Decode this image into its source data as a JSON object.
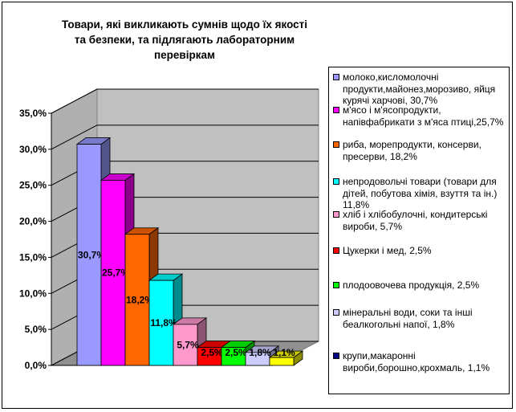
{
  "chart_data": {
    "type": "bar",
    "title": "Товари, які викликають сумнів щодо їх якості та безпеки, та підлягають лабораторним перевіркам",
    "ylim": [
      0,
      35
    ],
    "yticks": [
      "0,0%",
      "5,0%",
      "10,0%",
      "15,0%",
      "20,0%",
      "25,0%",
      "30,0%",
      "35,0%"
    ],
    "grid": true,
    "legend_position": "right",
    "series": [
      {
        "label": "молоко,кисломолочні продукти,майонез,морозиво, яйця курячі харчові,  30,7%",
        "value": 30.7,
        "data_label": "30,7%",
        "color": "#9999ff"
      },
      {
        "label": "м'ясо і м'ясопродукти, напівфабрикати з м'яса птиці,25,7%",
        "value": 25.7,
        "data_label": "25,7%",
        "color": "#ff00ff"
      },
      {
        "label": "риба, морепродукти, консерви, пресерви,  18,2%",
        "value": 18.2,
        "data_label": "18,2%",
        "color": "#ff6600"
      },
      {
        "label": "непродовольчі товари (товари для дітей, побутова хімія, взуття та ін.) 11,8%",
        "value": 11.8,
        "data_label": "11,8%",
        "color": "#00ffff"
      },
      {
        "label": "хліб і хлібобулочні, кондитерські вироби, 5,7%",
        "value": 5.7,
        "data_label": "5,7%",
        "color": "#ff99cc"
      },
      {
        "label": "Цукерки і мед, 2,5%",
        "value": 2.5,
        "data_label": "2,5%",
        "color": "#ff0000"
      },
      {
        "label": "плодоовочева продукція, 2,5%",
        "value": 2.5,
        "data_label": "2,5%",
        "color": "#00ff00"
      },
      {
        "label": "мінеральні води, соки та інші беалкогольні напої, 1,8%",
        "value": 1.8,
        "data_label": "1,8%",
        "color": "#ccccff"
      },
      {
        "label": "крупи,макаронні вироби,борошно,крохмаль, 1,1%",
        "value": 1.1,
        "data_label": "1,1%",
        "color": "#ffff00"
      }
    ],
    "legend_swatch_colors": [
      "#9999ff",
      "#ff00ff",
      "#ff6600",
      "#00ffff",
      "#ff99cc",
      "#ff0000",
      "#00ff00",
      "#ccccff",
      "#000080"
    ]
  }
}
